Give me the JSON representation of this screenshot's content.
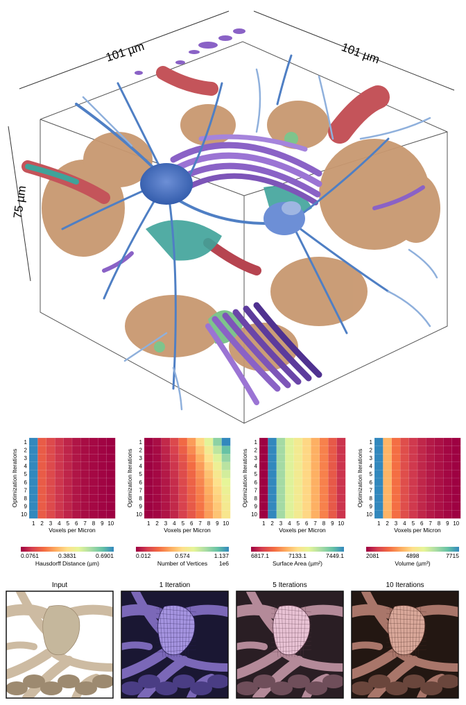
{
  "volume": {
    "dim_x": "101 µm",
    "dim_y": "101 µm",
    "dim_z": "75 µm"
  },
  "heatmaps": [
    {
      "metric": "Hausdorff",
      "ylabel": "Optimization Iterations",
      "xlabel": "Voxels per Micron",
      "colorbar_ticks": [
        "0.0761",
        "0.3831",
        "0.6901"
      ],
      "colorbar_label": "Hausdorff Distance (µm)",
      "colorbar_multiplier": ""
    },
    {
      "metric": "Vertices",
      "ylabel": "Optimization Iterations",
      "xlabel": "Voxels per Micron",
      "colorbar_ticks": [
        "0.012",
        "0.574",
        "1.137"
      ],
      "colorbar_label": "Number of Vertices",
      "colorbar_multiplier": "1e6"
    },
    {
      "metric": "Surface",
      "ylabel": "Optimization Iterations",
      "xlabel": "Voxels per Micron",
      "colorbar_ticks": [
        "6817.1",
        "7133.1",
        "7449.1"
      ],
      "colorbar_label": "Surface Area (µm²)",
      "colorbar_multiplier": ""
    },
    {
      "metric": "Volume",
      "ylabel": "Optimization Iterations",
      "xlabel": "Voxels per Micron",
      "colorbar_ticks": [
        "2081",
        "4898",
        "7715"
      ],
      "colorbar_label": "Volume (µm³)",
      "colorbar_multiplier": ""
    }
  ],
  "axis_ticks": {
    "x": [
      "1",
      "2",
      "3",
      "4",
      "5",
      "6",
      "7",
      "8",
      "9",
      "10"
    ],
    "y": [
      "1",
      "2",
      "3",
      "4",
      "5",
      "6",
      "7",
      "8",
      "9",
      "10"
    ]
  },
  "chart_data": [
    {
      "type": "heatmap",
      "xlabel": "Voxels per Micron",
      "ylabel": "Optimization Iterations",
      "x": [
        1,
        2,
        3,
        4,
        5,
        6,
        7,
        8,
        9,
        10
      ],
      "y": [
        1,
        2,
        3,
        4,
        5,
        6,
        7,
        8,
        9,
        10
      ],
      "range": [
        0.0761,
        0.6901
      ],
      "values": [
        [
          0.6901,
          0.2,
          0.17,
          0.14,
          0.12,
          0.1,
          0.09,
          0.085,
          0.08,
          0.0761
        ],
        [
          0.6901,
          0.2,
          0.17,
          0.14,
          0.12,
          0.1,
          0.09,
          0.085,
          0.08,
          0.0761
        ],
        [
          0.6901,
          0.2,
          0.17,
          0.14,
          0.12,
          0.1,
          0.09,
          0.085,
          0.08,
          0.0761
        ],
        [
          0.6901,
          0.2,
          0.17,
          0.14,
          0.12,
          0.1,
          0.09,
          0.085,
          0.08,
          0.0761
        ],
        [
          0.6901,
          0.2,
          0.17,
          0.14,
          0.12,
          0.1,
          0.09,
          0.085,
          0.08,
          0.0761
        ],
        [
          0.6901,
          0.2,
          0.17,
          0.14,
          0.12,
          0.1,
          0.09,
          0.085,
          0.08,
          0.0761
        ],
        [
          0.6901,
          0.2,
          0.17,
          0.14,
          0.12,
          0.1,
          0.09,
          0.085,
          0.08,
          0.0761
        ],
        [
          0.6901,
          0.2,
          0.17,
          0.14,
          0.12,
          0.1,
          0.09,
          0.085,
          0.08,
          0.0761
        ],
        [
          0.6901,
          0.2,
          0.17,
          0.14,
          0.12,
          0.1,
          0.09,
          0.085,
          0.08,
          0.0761
        ],
        [
          0.6901,
          0.2,
          0.17,
          0.14,
          0.12,
          0.1,
          0.09,
          0.085,
          0.08,
          0.0761
        ]
      ]
    },
    {
      "type": "heatmap",
      "xlabel": "Voxels per Micron",
      "ylabel": "Optimization Iterations",
      "x": [
        1,
        2,
        3,
        4,
        5,
        6,
        7,
        8,
        9,
        10
      ],
      "y": [
        1,
        2,
        3,
        4,
        5,
        6,
        7,
        8,
        9,
        10
      ],
      "range": [
        0.012,
        1.137
      ],
      "values": [
        [
          0.012,
          0.04,
          0.1,
          0.18,
          0.28,
          0.4,
          0.55,
          0.72,
          0.92,
          1.137
        ],
        [
          0.012,
          0.035,
          0.09,
          0.16,
          0.25,
          0.36,
          0.49,
          0.64,
          0.81,
          1.0
        ],
        [
          0.012,
          0.03,
          0.08,
          0.14,
          0.22,
          0.32,
          0.44,
          0.58,
          0.73,
          0.9
        ],
        [
          0.012,
          0.03,
          0.07,
          0.13,
          0.2,
          0.29,
          0.4,
          0.53,
          0.67,
          0.82
        ],
        [
          0.012,
          0.028,
          0.065,
          0.12,
          0.19,
          0.27,
          0.37,
          0.49,
          0.62,
          0.76
        ],
        [
          0.012,
          0.027,
          0.06,
          0.11,
          0.18,
          0.26,
          0.35,
          0.46,
          0.58,
          0.71
        ],
        [
          0.012,
          0.026,
          0.058,
          0.105,
          0.17,
          0.25,
          0.33,
          0.44,
          0.55,
          0.68
        ],
        [
          0.012,
          0.025,
          0.056,
          0.1,
          0.165,
          0.24,
          0.32,
          0.42,
          0.53,
          0.65
        ],
        [
          0.012,
          0.025,
          0.055,
          0.1,
          0.16,
          0.23,
          0.31,
          0.41,
          0.51,
          0.63
        ],
        [
          0.012,
          0.024,
          0.054,
          0.095,
          0.155,
          0.225,
          0.3,
          0.4,
          0.5,
          0.61
        ]
      ]
    },
    {
      "type": "heatmap",
      "xlabel": "Voxels per Micron",
      "ylabel": "Optimization Iterations",
      "x": [
        1,
        2,
        3,
        4,
        5,
        6,
        7,
        8,
        9,
        10
      ],
      "y": [
        1,
        2,
        3,
        4,
        5,
        6,
        7,
        8,
        9,
        10
      ],
      "range": [
        6817.1,
        7449.1
      ],
      "values": [
        [
          6817.1,
          7449.1,
          7300,
          7220,
          7170,
          7120,
          7060,
          7000,
          6940,
          6880
        ],
        [
          6817.1,
          7449.1,
          7300,
          7220,
          7170,
          7120,
          7060,
          7000,
          6940,
          6880
        ],
        [
          6817.1,
          7449.1,
          7300,
          7220,
          7170,
          7120,
          7060,
          7000,
          6940,
          6880
        ],
        [
          6817.1,
          7449.1,
          7300,
          7220,
          7170,
          7120,
          7060,
          7000,
          6940,
          6880
        ],
        [
          6817.1,
          7449.1,
          7300,
          7220,
          7170,
          7120,
          7060,
          7000,
          6940,
          6880
        ],
        [
          6817.1,
          7449.1,
          7300,
          7220,
          7170,
          7120,
          7060,
          7000,
          6940,
          6880
        ],
        [
          6817.1,
          7449.1,
          7300,
          7220,
          7170,
          7120,
          7060,
          7000,
          6940,
          6880
        ],
        [
          6817.1,
          7449.1,
          7300,
          7220,
          7170,
          7120,
          7060,
          7000,
          6940,
          6880
        ],
        [
          6817.1,
          7449.1,
          7300,
          7220,
          7170,
          7120,
          7060,
          7000,
          6940,
          6880
        ],
        [
          6817.1,
          7449.1,
          7300,
          7220,
          7170,
          7120,
          7060,
          7000,
          6940,
          6880
        ]
      ]
    },
    {
      "type": "heatmap",
      "xlabel": "Voxels per Micron",
      "ylabel": "Optimization Iterations",
      "x": [
        1,
        2,
        3,
        4,
        5,
        6,
        7,
        8,
        9,
        10
      ],
      "y": [
        1,
        2,
        3,
        4,
        5,
        6,
        7,
        8,
        9,
        10
      ],
      "range": [
        2081,
        7715
      ],
      "values": [
        [
          7715,
          4300,
          3500,
          3000,
          2700,
          2500,
          2350,
          2250,
          2150,
          2081
        ],
        [
          7715,
          4300,
          3500,
          3000,
          2700,
          2500,
          2350,
          2250,
          2150,
          2081
        ],
        [
          7715,
          4300,
          3500,
          3000,
          2700,
          2500,
          2350,
          2250,
          2150,
          2081
        ],
        [
          7715,
          4300,
          3500,
          3000,
          2700,
          2500,
          2350,
          2250,
          2150,
          2081
        ],
        [
          7715,
          4300,
          3500,
          3000,
          2700,
          2500,
          2350,
          2250,
          2150,
          2081
        ],
        [
          7715,
          4300,
          3500,
          3000,
          2700,
          2500,
          2350,
          2250,
          2150,
          2081
        ],
        [
          7715,
          4300,
          3500,
          3000,
          2700,
          2500,
          2350,
          2250,
          2150,
          2081
        ],
        [
          7715,
          4300,
          3500,
          3000,
          2700,
          2500,
          2350,
          2250,
          2150,
          2081
        ],
        [
          7715,
          4300,
          3500,
          3000,
          2700,
          2500,
          2350,
          2250,
          2150,
          2081
        ],
        [
          7715,
          4300,
          3500,
          3000,
          2700,
          2500,
          2350,
          2250,
          2150,
          2081
        ]
      ]
    }
  ],
  "renders": [
    {
      "title": "Input",
      "style": "input"
    },
    {
      "title": "1 Iteration",
      "style": "purple"
    },
    {
      "title": "5 Iterations",
      "style": "mauve"
    },
    {
      "title": "10 Iterations",
      "style": "brown"
    }
  ],
  "colors": {
    "neuron_blue": "#4f7fc4",
    "neuron_light_blue": "#8fb0dc",
    "neuron_purple": "#8a62c6",
    "neuron_tan": "#c89870",
    "vessel_red": "#c4545a",
    "glia_green": "#7ec48c",
    "teal": "#3fa39a"
  }
}
